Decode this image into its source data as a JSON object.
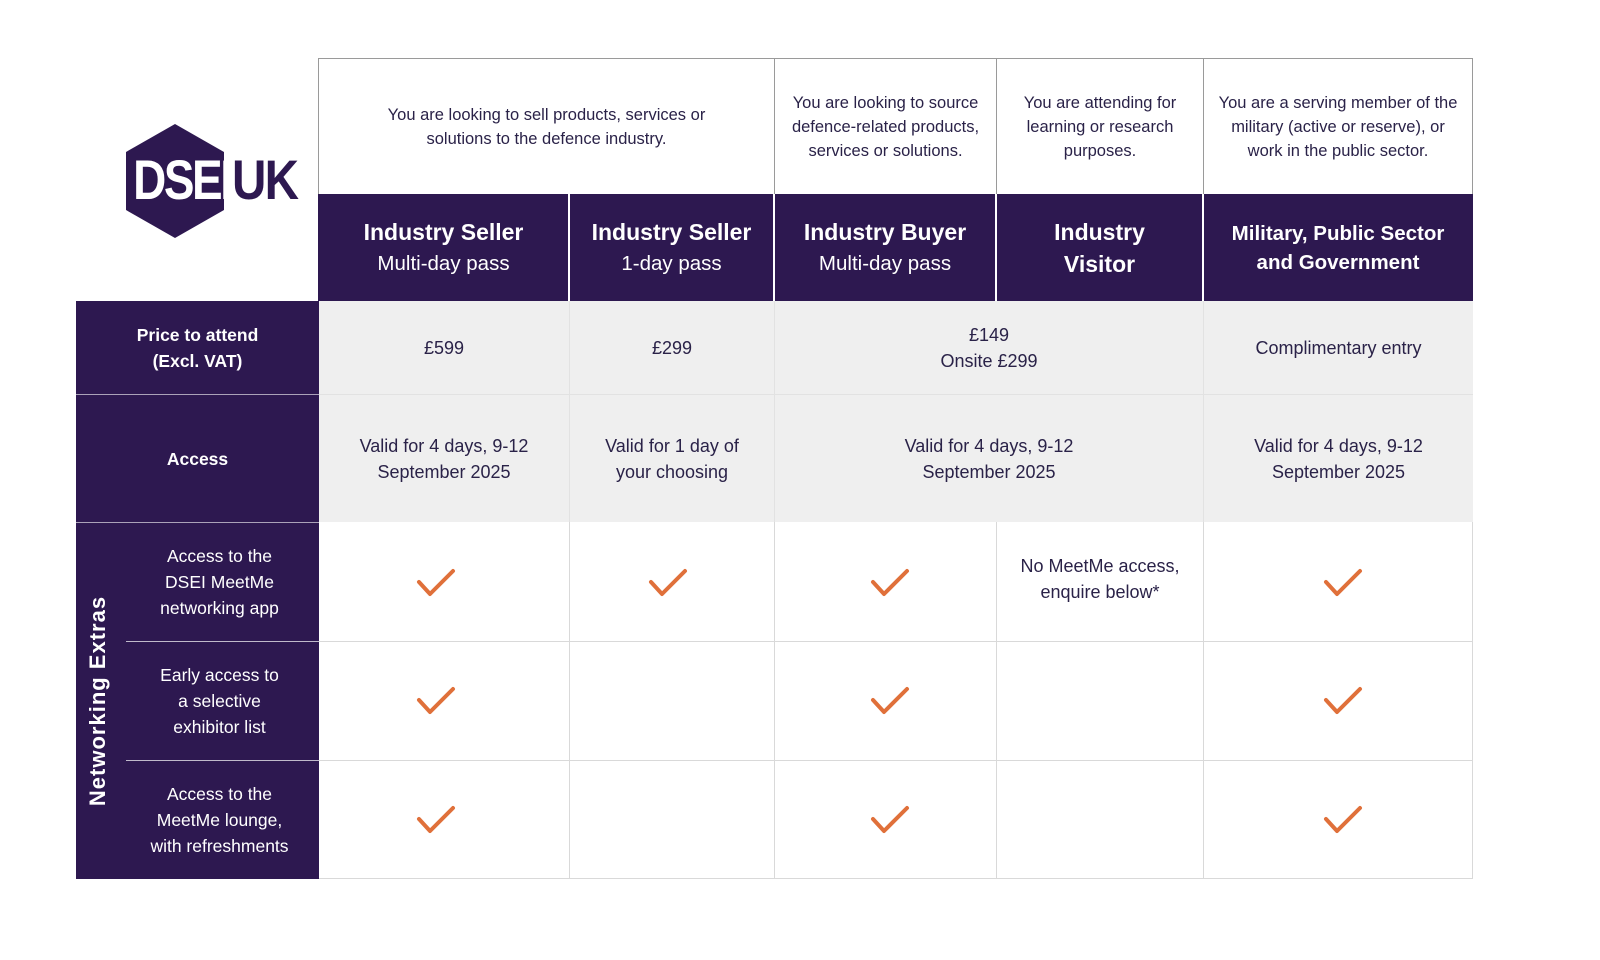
{
  "logo": {
    "text": "DSEI",
    "suffix": "UK",
    "brand_color": "#2d1850"
  },
  "descriptions": [
    "You are looking to sell products, services or solutions to the defence industry.",
    "You are looking to source defence-related products, services or solutions.",
    "You are attending for learning or research purposes.",
    "You are a serving member of the military (active or reserve), or work in the public sector."
  ],
  "headers": [
    {
      "title": "Industry Seller",
      "subtitle": "Multi-day pass"
    },
    {
      "title": "Industry Seller",
      "subtitle": "1-day pass"
    },
    {
      "title": "Industry Buyer",
      "subtitle": "Multi-day pass"
    },
    {
      "title": "Industry Visitor",
      "subtitle": ""
    },
    {
      "title": "Military, Public Sector and Government",
      "subtitle": ""
    }
  ],
  "rows": {
    "price": {
      "label": "Price to attend (Excl. VAT)",
      "seller_multi": "£599",
      "seller_1day": "£299",
      "buyer_visitor": "£149",
      "buyer_visitor_onsite": "Onsite £299",
      "military": "Complimentary entry"
    },
    "access": {
      "label": "Access",
      "seller_multi": "Valid for 4 days, 9-12 September 2025",
      "seller_1day": "Valid for 1 day of your choosing",
      "buyer_visitor": "Valid for 4 days, 9-12 September 2025",
      "military": "Valid for 4 days, 9-12 September 2025"
    }
  },
  "networking": {
    "group_label": "Networking Extras",
    "items": [
      {
        "label": "Access to the DSEI MeetMe networking app",
        "checks": [
          true,
          true,
          true,
          false,
          true
        ],
        "visitor_note": "No MeetMe access, enquire below*"
      },
      {
        "label": "Early access to a selective exhibitor list",
        "checks": [
          true,
          false,
          true,
          false,
          true
        ],
        "visitor_note": ""
      },
      {
        "label": "Access to the MeetMe lounge, with refreshments",
        "checks": [
          true,
          false,
          true,
          false,
          true
        ],
        "visitor_note": ""
      }
    ],
    "check_color": "#e0703a"
  }
}
